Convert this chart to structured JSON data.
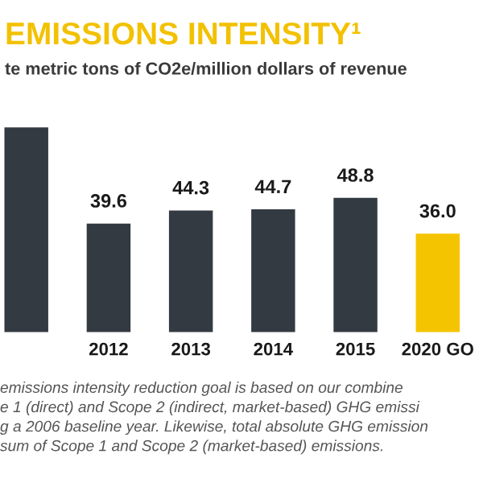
{
  "chart_data": {
    "type": "bar",
    "title": "EMISSIONS INTENSITY¹",
    "subtitle": "te metric tons of CO2e/million dollars of revenue",
    "categories": [
      null,
      "2012",
      "2013",
      "2014",
      "2015",
      "2020 GO"
    ],
    "values": [
      74,
      39.6,
      44.3,
      44.7,
      48.8,
      36.0
    ],
    "value_labels": [
      null,
      "39.6",
      "44.3",
      "44.7",
      "48.8",
      "36.0"
    ],
    "colors": [
      "#343a42",
      "#343a42",
      "#343a42",
      "#343a42",
      "#343a42",
      "#f5c400"
    ],
    "annotations": [
      "emissions intensity reduction goal is based on our combine\ne 1 (direct) and Scope 2 (indirect, market-based) GHG emissi\ng a 2006 baseline year. Likewise, total absolute GHG emission\nsum of Scope 1 and Scope 2 (market-based) emissions."
    ],
    "legend": false
  }
}
